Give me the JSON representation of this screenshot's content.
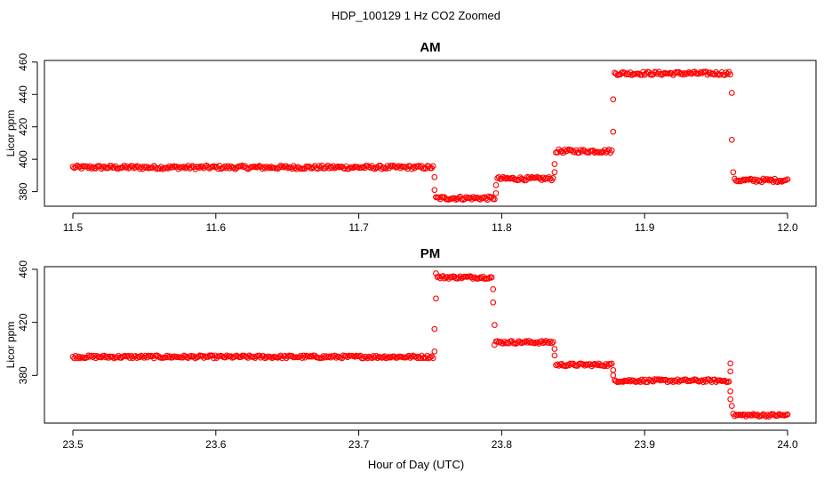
{
  "chart_data": {
    "type": "scatter",
    "title": "HDP_100129  1 Hz CO2 Zoomed",
    "xlabel": "Hour of Day (UTC)",
    "marker_color": "#ff0000",
    "grid": false,
    "panels": [
      {
        "title": "AM",
        "ylabel": "Licor ppm",
        "xlim": [
          11.5,
          12.0
        ],
        "ylim": [
          371,
          461
        ],
        "x_ticks": [
          11.5,
          11.6,
          11.7,
          11.8,
          11.9,
          12.0
        ],
        "x_tick_labels": [
          "11.5",
          "11.6",
          "11.7",
          "11.8",
          "11.9",
          "12.0"
        ],
        "y_ticks": [
          380,
          400,
          420,
          440,
          460
        ],
        "y_tick_labels": [
          "380",
          "400",
          "420",
          "440",
          "460"
        ],
        "segments": [
          {
            "x": [
              11.5,
              11.752
            ],
            "y": 395
          },
          {
            "x": [
              11.754,
              11.795
            ],
            "y": 376
          },
          {
            "x": [
              11.797,
              11.836
            ],
            "y": 388
          },
          {
            "x": [
              11.838,
              11.877
            ],
            "y": 405
          },
          {
            "x": [
              11.879,
              11.96
            ],
            "y": 453
          },
          {
            "x": [
              11.963,
              12.0
            ],
            "y": 387
          }
        ],
        "transitions": [
          {
            "x": 11.753,
            "y": 389
          },
          {
            "x": 11.753,
            "y": 381
          },
          {
            "x": 11.796,
            "y": 379
          },
          {
            "x": 11.796,
            "y": 384
          },
          {
            "x": 11.837,
            "y": 392
          },
          {
            "x": 11.837,
            "y": 397
          },
          {
            "x": 11.878,
            "y": 417
          },
          {
            "x": 11.878,
            "y": 437
          },
          {
            "x": 11.961,
            "y": 441
          },
          {
            "x": 11.961,
            "y": 412
          },
          {
            "x": 11.962,
            "y": 392
          }
        ]
      },
      {
        "title": "PM",
        "ylabel": "Licor ppm",
        "xlim": [
          23.5,
          24.0
        ],
        "ylim": [
          344,
          462
        ],
        "x_ticks": [
          23.5,
          23.6,
          23.7,
          23.8,
          23.9,
          24.0
        ],
        "x_tick_labels": [
          "23.5",
          "23.6",
          "23.7",
          "23.8",
          "23.9",
          "24.0"
        ],
        "y_ticks": [
          380,
          420,
          460
        ],
        "y_tick_labels": [
          "380",
          "420",
          "460"
        ],
        "segments": [
          {
            "x": [
              23.5,
              23.752
            ],
            "y": 394
          },
          {
            "x": [
              23.755,
              23.793
            ],
            "y": 454
          },
          {
            "x": [
              23.796,
              23.836
            ],
            "y": 405
          },
          {
            "x": [
              23.838,
              23.877
            ],
            "y": 388
          },
          {
            "x": [
              23.879,
              23.959
            ],
            "y": 376
          },
          {
            "x": [
              23.962,
              24.0
            ],
            "y": 350
          }
        ],
        "transitions": [
          {
            "x": 23.753,
            "y": 398
          },
          {
            "x": 23.753,
            "y": 415
          },
          {
            "x": 23.754,
            "y": 438
          },
          {
            "x": 23.754,
            "y": 457
          },
          {
            "x": 23.794,
            "y": 445
          },
          {
            "x": 23.794,
            "y": 435
          },
          {
            "x": 23.795,
            "y": 418
          },
          {
            "x": 23.795,
            "y": 403
          },
          {
            "x": 23.837,
            "y": 400
          },
          {
            "x": 23.837,
            "y": 395
          },
          {
            "x": 23.878,
            "y": 384
          },
          {
            "x": 23.878,
            "y": 380
          },
          {
            "x": 23.96,
            "y": 389
          },
          {
            "x": 23.96,
            "y": 383
          },
          {
            "x": 23.96,
            "y": 362
          },
          {
            "x": 23.96,
            "y": 368
          },
          {
            "x": 23.961,
            "y": 357
          }
        ]
      }
    ]
  }
}
